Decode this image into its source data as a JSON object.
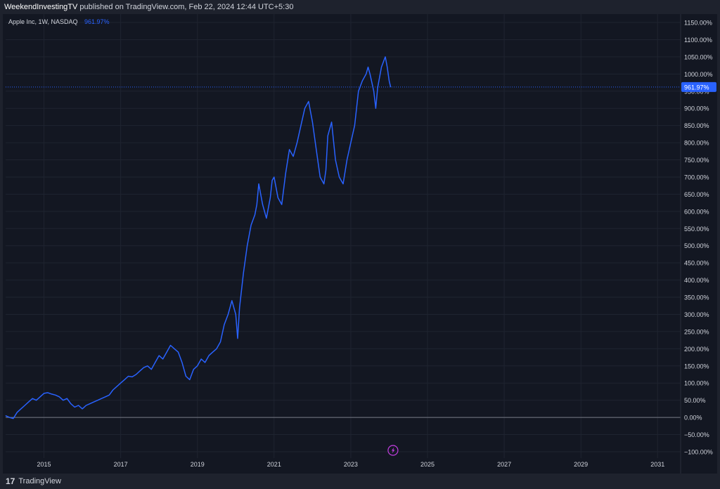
{
  "header": {
    "publisher": "WeekendInvestingTV",
    "text": "published on TradingView.com, Feb 22, 2024 12:44 UTC+5:30"
  },
  "legend": {
    "symbol": "Apple Inc, 1W, NASDAQ",
    "value": "961.97%"
  },
  "footer": {
    "logo_glyph": "17",
    "brand": "TradingView"
  },
  "colors": {
    "background": "#131722",
    "line": "#2962ff",
    "grid": "#1f2430",
    "text": "#d1d4dc",
    "lightning": "#c23de0"
  },
  "chart_data": {
    "type": "line",
    "title": "Apple Inc, 1W, NASDAQ",
    "ylabel": "",
    "xlabel": "",
    "scale": "percent",
    "ylim": [
      -100,
      1150
    ],
    "xlim": [
      2014.1,
      2031.7
    ],
    "x_ticks": [
      "2015",
      "2017",
      "2019",
      "2021",
      "2023",
      "2025",
      "2027",
      "2029",
      "2031"
    ],
    "y_ticks": [
      "1150.00%",
      "1100.00%",
      "1050.00%",
      "1000.00%",
      "950.00%",
      "900.00%",
      "850.00%",
      "800.00%",
      "750.00%",
      "700.00%",
      "650.00%",
      "600.00%",
      "550.00%",
      "500.00%",
      "450.00%",
      "400.00%",
      "350.00%",
      "300.00%",
      "250.00%",
      "200.00%",
      "150.00%",
      "100.00%",
      "50.00%",
      "0.00%",
      "−50.00%",
      "−100.00%"
    ],
    "last_value_label": "961.97%",
    "series": [
      {
        "x": [
          2014.1,
          2014.2,
          2014.3,
          2014.4,
          2014.5,
          2014.6,
          2014.7,
          2014.8,
          2014.9,
          2015.0,
          2015.1,
          2015.2,
          2015.3,
          2015.4,
          2015.5,
          2015.6,
          2015.7,
          2015.8,
          2015.9,
          2016.0,
          2016.1,
          2016.2,
          2016.3,
          2016.4,
          2016.5,
          2016.6,
          2016.7,
          2016.8,
          2016.9,
          2017.0,
          2017.1,
          2017.2,
          2017.3,
          2017.4,
          2017.5,
          2017.6,
          2017.7,
          2017.8,
          2017.9,
          2018.0,
          2018.1,
          2018.2,
          2018.3,
          2018.4,
          2018.5,
          2018.6,
          2018.7,
          2018.8,
          2018.9,
          2019.0,
          2019.1,
          2019.2,
          2019.3,
          2019.4,
          2019.5,
          2019.6,
          2019.7,
          2019.8,
          2019.9,
          2020.0,
          2020.1,
          2020.15,
          2020.2,
          2020.3,
          2020.4,
          2020.5,
          2020.6,
          2020.65,
          2020.7,
          2020.8,
          2020.9,
          2021.0,
          2021.05,
          2021.1,
          2021.2,
          2021.3,
          2021.4,
          2021.5,
          2021.6,
          2021.7,
          2021.8,
          2021.9,
          2022.0,
          2022.1,
          2022.2,
          2022.3,
          2022.4,
          2022.45,
          2022.5,
          2022.6,
          2022.7,
          2022.8,
          2022.9,
          2023.0,
          2023.1,
          2023.2,
          2023.3,
          2023.4,
          2023.5,
          2023.55,
          2023.6,
          2023.7,
          2023.75,
          2023.8,
          2023.9,
          2024.0,
          2024.05,
          2024.1,
          2024.14
        ],
        "values": [
          5,
          0,
          -3,
          15,
          25,
          35,
          45,
          55,
          50,
          60,
          70,
          72,
          68,
          65,
          60,
          50,
          55,
          40,
          30,
          35,
          25,
          35,
          40,
          45,
          50,
          55,
          60,
          65,
          80,
          90,
          100,
          110,
          120,
          118,
          125,
          135,
          145,
          150,
          140,
          160,
          180,
          170,
          190,
          210,
          200,
          190,
          160,
          120,
          110,
          140,
          150,
          170,
          160,
          180,
          190,
          200,
          220,
          270,
          300,
          340,
          300,
          230,
          320,
          420,
          500,
          560,
          590,
          620,
          680,
          620,
          580,
          640,
          690,
          700,
          640,
          620,
          710,
          780,
          760,
          800,
          850,
          900,
          920,
          860,
          780,
          700,
          680,
          720,
          820,
          860,
          750,
          700,
          680,
          750,
          800,
          850,
          950,
          980,
          1000,
          1020,
          1000,
          950,
          900,
          960,
          1020,
          1050,
          1020,
          980,
          962
        ]
      }
    ]
  }
}
